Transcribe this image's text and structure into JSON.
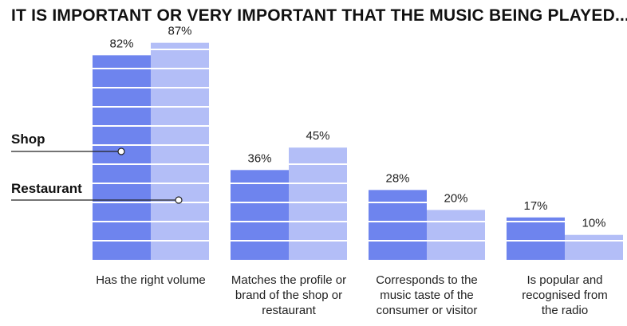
{
  "chart_data": {
    "type": "bar",
    "title": "IT IS IMPORTANT OR VERY IMPORTANT THAT THE MUSIC BEING PLAYED...",
    "categories": [
      [
        "Has the right volume"
      ],
      [
        "Matches the profile or",
        "brand of the shop or",
        "restaurant"
      ],
      [
        "Corresponds to the",
        "music taste of the",
        "consumer or visitor"
      ],
      [
        "Is popular and",
        "recognised from",
        "the radio"
      ]
    ],
    "series": [
      {
        "name": "Shop",
        "values": [
          82,
          36,
          28,
          17
        ],
        "labels": [
          "82%",
          "36%",
          "28%",
          "17%"
        ],
        "color": "#6E84EE"
      },
      {
        "name": "Restaurant",
        "values": [
          87,
          45,
          20,
          10
        ],
        "labels": [
          "87%",
          "45%",
          "20%",
          "10%"
        ],
        "color": "#B3BEF7"
      }
    ],
    "ylim": [
      0,
      100
    ],
    "grid": true,
    "legend": "left"
  }
}
